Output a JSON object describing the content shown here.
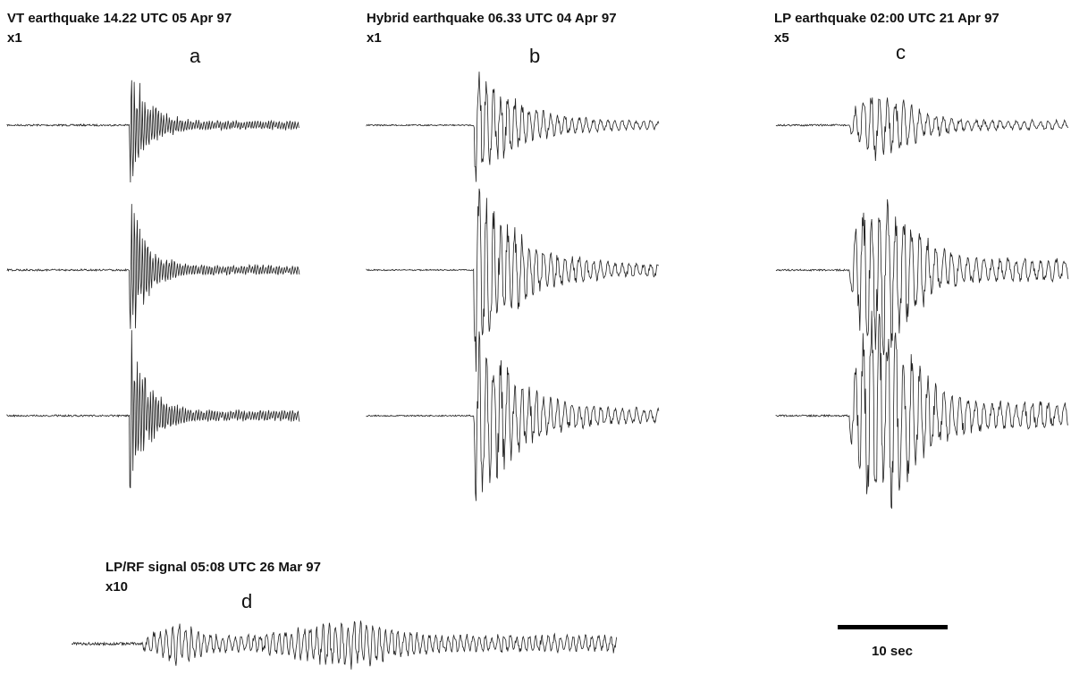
{
  "panels": [
    {
      "title": "VT earthquake 14.22 UTC 05 Apr 97",
      "gain": "x1",
      "letter": "a"
    },
    {
      "title": "Hybrid earthquake 06.33 UTC 04 Apr 97",
      "gain": "x1",
      "letter": "b"
    },
    {
      "title": "LP earthquake 02:00 UTC 21 Apr 97",
      "gain": "x5",
      "letter": "c"
    },
    {
      "title": "LP/RF signal 05:08 UTC 26 Mar 97",
      "gain": "x10",
      "letter": "d"
    }
  ],
  "scale_bar": {
    "label": "10 sec"
  }
}
